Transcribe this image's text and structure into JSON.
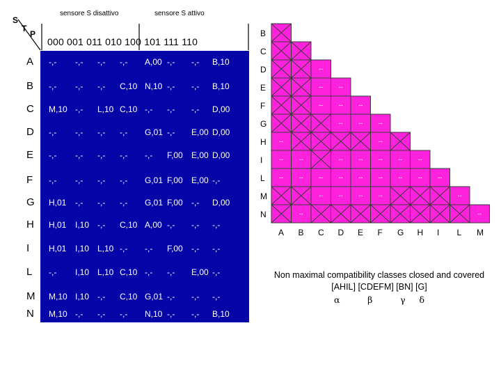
{
  "header": {
    "sensor_off": "sensore S disattivo",
    "sensor_on": "sensore S attivo",
    "s": "S",
    "t": "T",
    "p": "P",
    "codes": "000 001 011 010 100 101 111 110"
  },
  "table": {
    "rows": [
      {
        "label": "A",
        "cells": [
          "-,-",
          "-,-",
          "-,-",
          "-,-",
          "A,00",
          "-,-",
          "-,-",
          "B,10"
        ]
      },
      {
        "label": "B",
        "cells": [
          "-,-",
          "-,-",
          "-,-",
          "C,10",
          "N,10",
          "-,-",
          "-,-",
          "B,10"
        ]
      },
      {
        "label": "C",
        "cells": [
          "M,10",
          "-,-",
          "L,10",
          "C,10",
          "-,-",
          "-,-",
          "-,-",
          "D,00"
        ]
      },
      {
        "label": "D",
        "cells": [
          "-,-",
          "-,-",
          "-,-",
          "-,-",
          "G,01",
          "-,-",
          "E,00",
          "D,00"
        ]
      },
      {
        "label": "E",
        "cells": [
          "-,-",
          "-,-",
          "-,-",
          "-,-",
          "-,-",
          "F,00",
          "E,00",
          "D,00"
        ]
      },
      {
        "label": "F",
        "cells": [
          "-,-",
          "-,-",
          "-,-",
          "-,-",
          "G,01",
          "F,00",
          "E,00",
          "-,-"
        ]
      },
      {
        "label": "G",
        "cells": [
          "H,01",
          "-,-",
          "-,-",
          "-,-",
          "G,01",
          "F,00",
          "-,-",
          "D,00"
        ]
      },
      {
        "label": "H",
        "cells": [
          "H,01",
          "I,10",
          "-,-",
          "C,10",
          "A,00",
          "-,-",
          "-,-",
          "-,-"
        ]
      },
      {
        "label": "I",
        "cells": [
          "H,01",
          "I,10",
          "L,10",
          "-,-",
          "-,-",
          "F,00",
          "-,-",
          "-,-"
        ]
      },
      {
        "label": "L",
        "cells": [
          "-,-",
          "I,10",
          "L,10",
          "C,10",
          "-,-",
          "-,-",
          "E,00",
          "-,-"
        ]
      },
      {
        "label": "M",
        "cells": [
          "M,10",
          "I,10",
          "-,-",
          "C,10",
          "G,01",
          "-,-",
          "-,-",
          "-,-"
        ]
      },
      {
        "label": "N",
        "cells": [
          "M,10",
          "-,-",
          "-,-",
          "-,-",
          "N,10",
          "-,-",
          "-,-",
          "B,10"
        ]
      }
    ]
  },
  "compat": {
    "row_labels": [
      "B",
      "C",
      "D",
      "E",
      "F",
      "G",
      "H",
      "I",
      "L",
      "M",
      "N"
    ],
    "col_labels": [
      "A",
      "B",
      "C",
      "D",
      "E",
      "F",
      "G",
      "H",
      "I",
      "L",
      "M"
    ],
    "dash_symbol": "--",
    "cells": [
      [
        "x"
      ],
      [
        "x",
        "x"
      ],
      [
        "x",
        "x",
        "d"
      ],
      [
        "x",
        "x",
        "d",
        "d"
      ],
      [
        "x",
        "x",
        "d",
        "d",
        "d"
      ],
      [
        "x",
        "x",
        "x",
        "d",
        "d",
        "d"
      ],
      [
        "d",
        "x",
        "x",
        "x",
        "x",
        "d",
        "x"
      ],
      [
        "d",
        "d",
        "x",
        "d",
        "d",
        "d",
        "d",
        "d"
      ],
      [
        "d",
        "d",
        "d",
        "d",
        "d",
        "d",
        "d",
        "d",
        "d"
      ],
      [
        "x",
        "x",
        "d",
        "d",
        "d",
        "d",
        "x",
        "x",
        "x",
        "d"
      ],
      [
        "x",
        "d",
        "x",
        "x",
        "x",
        "x",
        "x",
        "x",
        "x",
        "x",
        "d"
      ]
    ]
  },
  "caption": {
    "line1": "Non maximal compatibility classes closed and covered",
    "line2": "[AHIL]  [CDEFM] [BN] [G]",
    "line3": "α          β          γ     δ"
  }
}
